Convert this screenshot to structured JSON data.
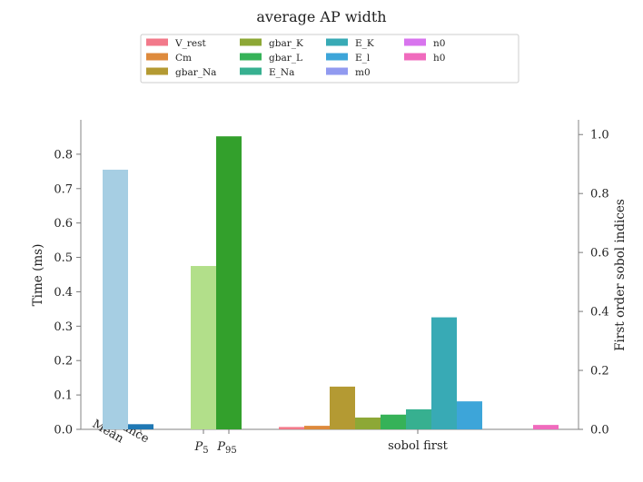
{
  "chart_data": {
    "type": "bar",
    "title": "average AP width",
    "ylabel_left": "Time (ms)",
    "ylabel_right": "First order sobol indices",
    "ylim_left": [
      0,
      0.9
    ],
    "ylim_right": [
      0,
      1.05
    ],
    "yticks_left": [
      "0.0",
      "0.1",
      "0.2",
      "0.3",
      "0.4",
      "0.5",
      "0.6",
      "0.7",
      "0.8"
    ],
    "yticks_right": [
      "0.0",
      "0.2",
      "0.4",
      "0.6",
      "0.8",
      "1.0"
    ],
    "xticks": [
      {
        "label": "Mean",
        "rotated": true
      },
      {
        "label": "Variance",
        "rotated": true
      },
      {
        "label": "P5",
        "sub": "5"
      },
      {
        "label": "P95",
        "sub": "95"
      },
      {
        "label": "sobol first",
        "rotated": false
      }
    ],
    "left_bars": [
      {
        "name": "Mean",
        "value": 0.755,
        "color": "#a6cee3"
      },
      {
        "name": "Variance",
        "value": 0.015,
        "color": "#1f78b4"
      },
      {
        "name": "P5",
        "value": 0.475,
        "color": "#b2df8a"
      },
      {
        "name": "P95",
        "value": 0.852,
        "color": "#33a02c"
      }
    ],
    "sobol_first": [
      {
        "name": "V_rest",
        "value": 0.008,
        "color": "#f2798a"
      },
      {
        "name": "Cm",
        "value": 0.012,
        "color": "#de8a3c"
      },
      {
        "name": "gbar_Na",
        "value": 0.145,
        "color": "#b49a33"
      },
      {
        "name": "gbar_K",
        "value": 0.04,
        "color": "#8da836"
      },
      {
        "name": "gbar_L",
        "value": 0.05,
        "color": "#36b258"
      },
      {
        "name": "E_Na",
        "value": 0.068,
        "color": "#37b090"
      },
      {
        "name": "E_K",
        "value": 0.38,
        "color": "#38aab5"
      },
      {
        "name": "E_l",
        "value": 0.095,
        "color": "#3da5d9"
      },
      {
        "name": "m0",
        "value": 0.0,
        "color": "#919af0"
      },
      {
        "name": "n0",
        "value": 0.0,
        "color": "#d874ee"
      },
      {
        "name": "h0",
        "value": 0.015,
        "color": "#f06bbd"
      }
    ],
    "legend": {
      "placement": "top-center",
      "columns": 5,
      "entries": [
        "V_rest",
        "Cm",
        "gbar_Na",
        "gbar_K",
        "gbar_L",
        "E_Na",
        "E_K",
        "E_l",
        "m0",
        "n0",
        "h0"
      ],
      "colors": [
        "#f2798a",
        "#de8a3c",
        "#b49a33",
        "#8da836",
        "#36b258",
        "#37b090",
        "#38aab5",
        "#3da5d9",
        "#919af0",
        "#d874ee",
        "#f06bbd"
      ]
    },
    "grid": false
  }
}
